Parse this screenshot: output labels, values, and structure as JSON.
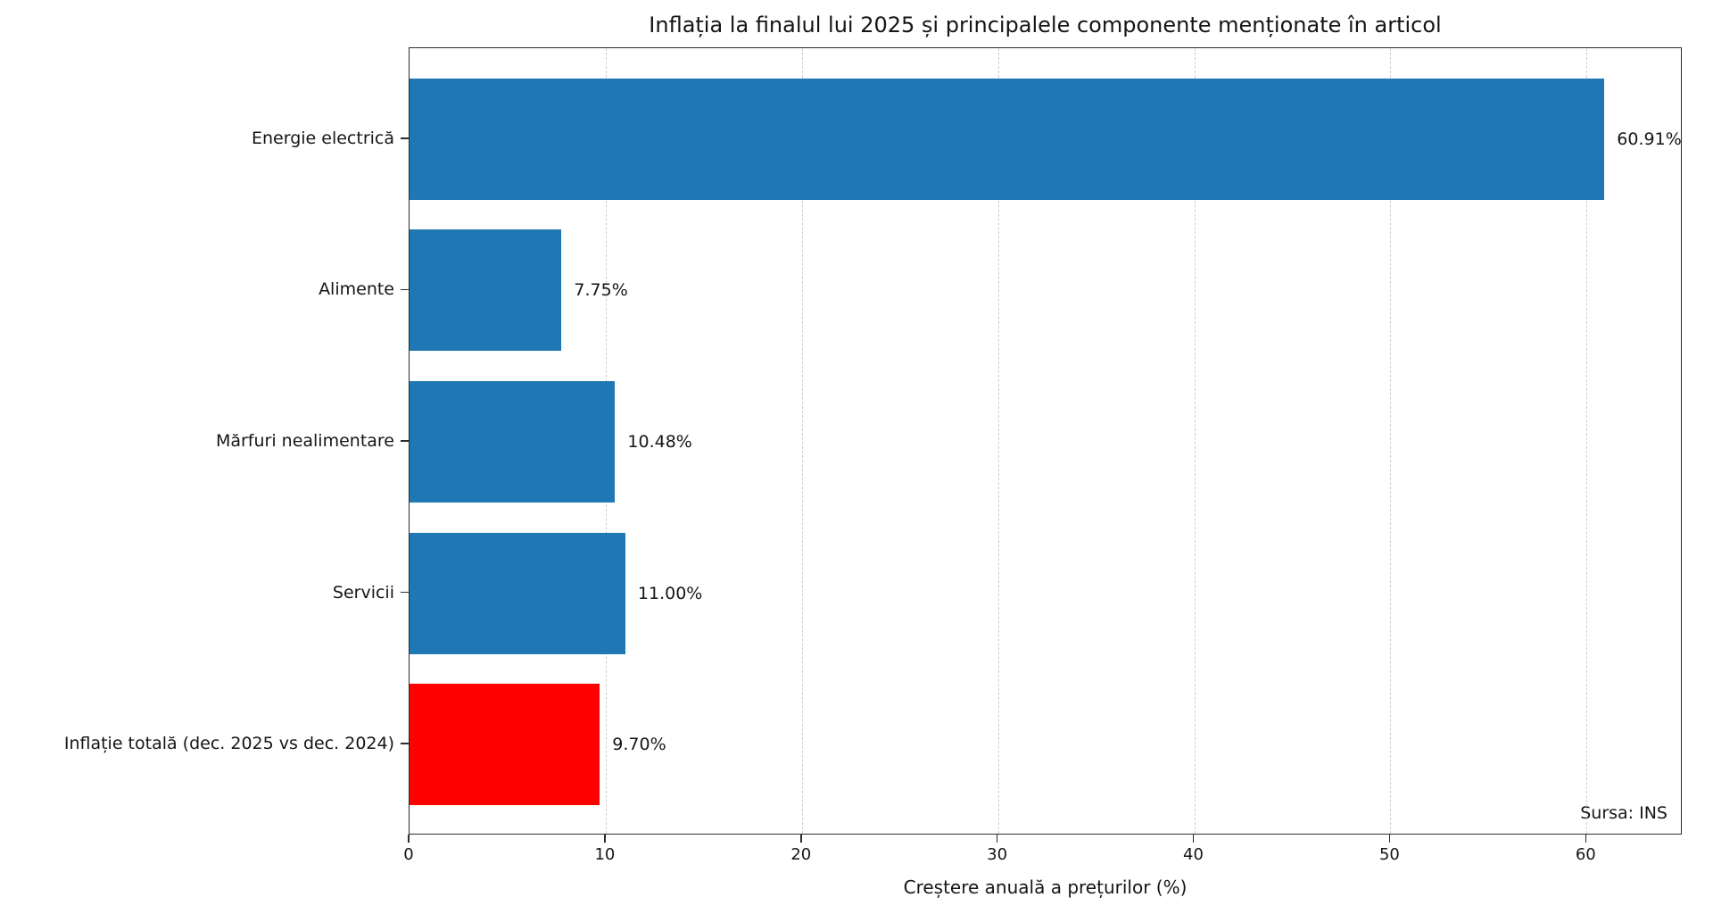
{
  "page": {
    "background": "#ffffff"
  },
  "chart_data": {
    "type": "bar",
    "orientation": "horizontal",
    "title": "Inflația la finalul lui 2025 și principalele componente menționate în articol",
    "xlabel": "Creștere anuală a prețurilor (%)",
    "ylabel": "",
    "source_note": "Sursa: INS",
    "categories": [
      "Energie electrică",
      "Alimente",
      "Mărfuri nealimentare",
      "Servicii",
      "Inflație totală (dec. 2025 vs dec. 2024)"
    ],
    "values": [
      60.91,
      7.75,
      10.48,
      11.0,
      9.7
    ],
    "value_labels": [
      "60.91%",
      "7.75%",
      "10.48%",
      "11.00%",
      "9.70%"
    ],
    "bar_colors": [
      "#1f77b4",
      "#1f77b4",
      "#1f77b4",
      "#1f77b4",
      "#fe0000"
    ],
    "colors": {
      "bar_blue": "#1f77b4",
      "bar_red": "#fe0000",
      "spine": "#2b2b2b",
      "grid": "#cdcdcd",
      "text": "#151515"
    },
    "xlim": [
      0,
      64.9
    ],
    "xticks": [
      {
        "value": 0,
        "label": "0"
      },
      {
        "value": 10,
        "label": "10"
      },
      {
        "value": 20,
        "label": "20"
      },
      {
        "value": 30,
        "label": "30"
      },
      {
        "value": 40,
        "label": "40"
      },
      {
        "value": 50,
        "label": "50"
      },
      {
        "value": 60,
        "label": "60"
      }
    ],
    "grid": {
      "axis": "x",
      "style": "dashed",
      "shown": true
    },
    "legend": {
      "shown": false
    }
  }
}
